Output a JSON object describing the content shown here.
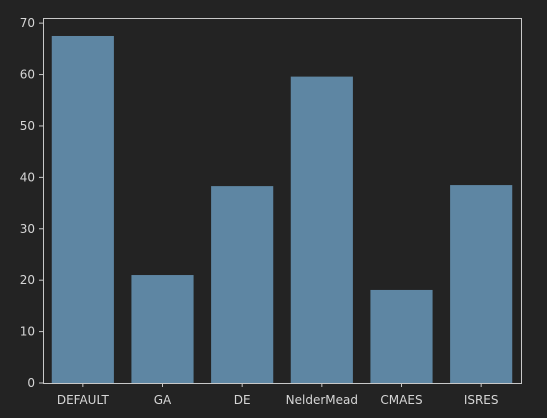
{
  "chart_data": {
    "type": "bar",
    "categories": [
      "DEFAULT",
      "GA",
      "DE",
      "NelderMead",
      "CMAES",
      "ISRES"
    ],
    "values": [
      67.5,
      21.0,
      38.3,
      59.6,
      18.1,
      38.5
    ],
    "title": "",
    "xlabel": "",
    "ylabel": "",
    "ylim": [
      0,
      71
    ],
    "yticks": [
      0,
      10,
      20,
      30,
      40,
      50,
      60,
      70
    ],
    "grid": false,
    "legend": "none",
    "colors": {
      "background": "#232323",
      "bar": "#5e86a3",
      "axis": "#c8c8c8",
      "text": "#d6d6d6"
    }
  }
}
